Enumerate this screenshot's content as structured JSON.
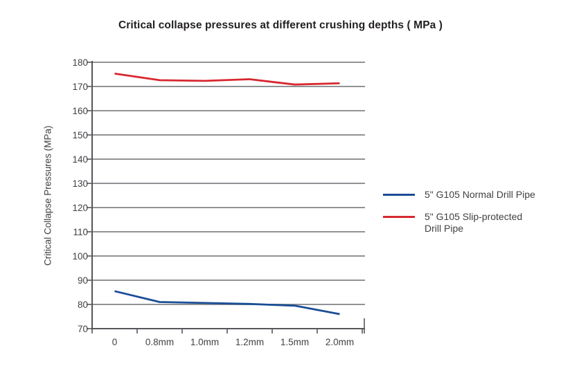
{
  "page": {
    "background": "#ffffff"
  },
  "chart_data": {
    "type": "line",
    "title": "Critical collapse pressures at different crushing depths ( MPa )",
    "ylabel": "Critical Collapse Pressures (MPa)",
    "xlabel": "",
    "categories": [
      "0",
      "0.8mm",
      "1.0mm",
      "1.2mm",
      "1.5mm",
      "2.0mm"
    ],
    "yticks": [
      180,
      170,
      160,
      150,
      140,
      130,
      120,
      110,
      100,
      90,
      80,
      70
    ],
    "ylim": [
      70,
      180
    ],
    "grid": "horizontal-only",
    "legend_position": "right-of-plot",
    "series": [
      {
        "name": "5\" G105 Normal Drill Pipe",
        "name_lines": [
          "5\" G105 Normal Drill Pipe"
        ],
        "color": "#1a4d96",
        "values": [
          85.5,
          81,
          80.6,
          80.2,
          79.5,
          76
        ]
      },
      {
        "name": "5\" G105 Slip-protected Drill Pipe",
        "name_lines": [
          "5\" G105 Slip-protected",
          "Drill Pipe"
        ],
        "color": "#d7282f",
        "values": [
          175.3,
          172.6,
          172.3,
          173,
          170.8,
          171.3
        ]
      }
    ],
    "colors": {
      "grid": "#909295",
      "axis": "#55565a",
      "title_text": "#231f20",
      "label_text": "#414042"
    }
  }
}
